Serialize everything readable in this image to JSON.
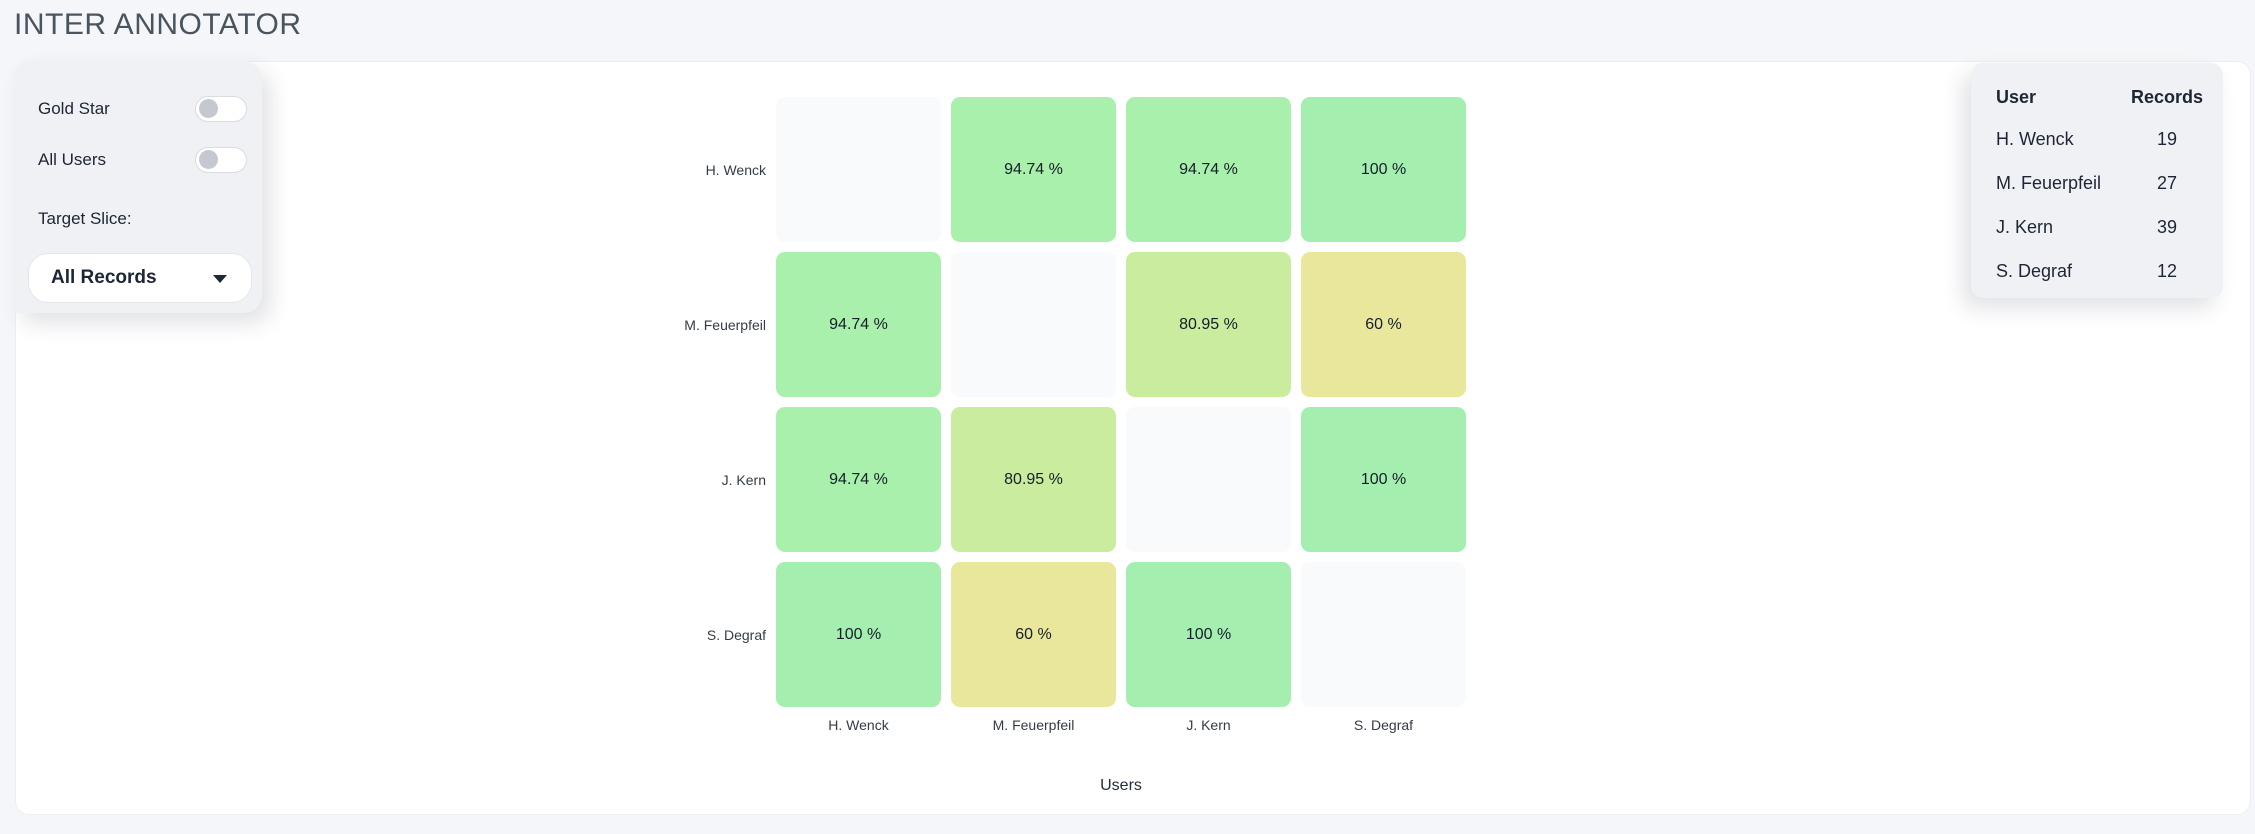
{
  "title": "INTER ANNOTATOR",
  "filter_panel": {
    "toggles": [
      {
        "label": "Gold Star",
        "on": false
      },
      {
        "label": "All Users",
        "on": false
      }
    ],
    "target_slice_label": "Target Slice:",
    "dropdown_value": "All Records"
  },
  "heatmap": {
    "type": "heatmap",
    "users": [
      "H. Wenck",
      "M. Feuerpfeil",
      "J. Kern",
      "S. Degraf"
    ],
    "xlabel": "Users",
    "unit": "%",
    "matrix": [
      [
        null,
        94.74,
        94.74,
        100
      ],
      [
        94.74,
        null,
        80.95,
        60
      ],
      [
        94.74,
        80.95,
        null,
        100
      ],
      [
        100,
        60,
        100,
        null
      ]
    ],
    "value_colors": {
      "100": "#a4eeaf",
      "94.74": "#a8f0ac",
      "80.95": "#c9ec9e",
      "60": "#e9e79c"
    },
    "diagonal_color": "#f8fafb"
  },
  "records_table": {
    "headers": [
      "User",
      "Records"
    ],
    "rows": [
      {
        "user": "H. Wenck",
        "records": "19"
      },
      {
        "user": "M. Feuerpfeil",
        "records": "27"
      },
      {
        "user": "J. Kern",
        "records": "39"
      },
      {
        "user": "S. Degraf",
        "records": "12"
      }
    ]
  },
  "colors": {
    "page_bg": "#f5f6f9",
    "card_bg": "#ffffff",
    "panel_bg": "#f0f1f4",
    "title_color": "#4a545f",
    "text_dark": "#1d2635",
    "toggle_knob": "#c4c9d1"
  }
}
